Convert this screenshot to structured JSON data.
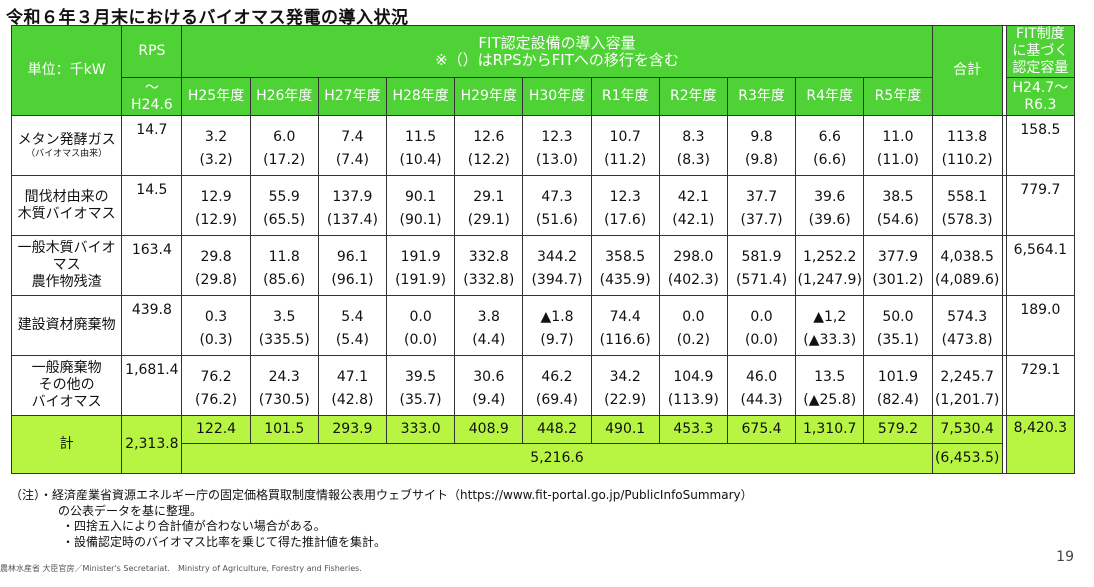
{
  "title": "令和６年３月末におけるバイオマス発電の導入状況",
  "header": {
    "unit": "単位：千kW",
    "rps": "RPS",
    "rps_period": "～\nH24.6",
    "fit_line1": "FIT認定設備の導入容量",
    "fit_line2": "※（）はRPSからFITへの移行を含む",
    "years": [
      "H25年度",
      "H26年度",
      "H27年度",
      "H28年度",
      "H29年度",
      "H30年度",
      "R1年度",
      "R2年度",
      "R3年度",
      "R4年度",
      "R5年度"
    ],
    "total": "合計",
    "fit_cert": "FIT制度\nに基づく\n認定容量",
    "fit_cert_period": "H24.7～\nR6.3"
  },
  "rows": [
    {
      "label": "メタン発酵ガス",
      "sublabel": "（バイオマス由来）",
      "rps": "14.7",
      "years": [
        "3.2",
        "6.0",
        "7.4",
        "11.5",
        "12.6",
        "12.3",
        "10.7",
        "8.3",
        "9.8",
        "6.6",
        "11.0"
      ],
      "years_incl": [
        "(3.2)",
        "(17.2)",
        "(7.4)",
        "(10.4)",
        "(12.2)",
        "(13.0)",
        "(11.2)",
        "(8.3)",
        "(9.8)",
        "(6.6)",
        "(11.0)"
      ],
      "total": "113.8",
      "total_incl": "(110.2)",
      "cert": "158.5"
    },
    {
      "label": "間伐材由来の\n木質バイオマス",
      "sublabel": "",
      "rps": "14.5",
      "years": [
        "12.9",
        "55.9",
        "137.9",
        "90.1",
        "29.1",
        "47.3",
        "12.3",
        "42.1",
        "37.7",
        "39.6",
        "38.5"
      ],
      "years_incl": [
        "(12.9)",
        "(65.5)",
        "(137.4)",
        "(90.1)",
        "(29.1)",
        "(51.6)",
        "(17.6)",
        "(42.1)",
        "(37.7)",
        "(39.6)",
        "(54.6)"
      ],
      "total": "558.1",
      "total_incl": "(578.3)",
      "cert": "779.7"
    },
    {
      "label": "一般木質バイオ\nマス\n農作物残渣",
      "sublabel": "",
      "rps": "163.4",
      "years": [
        "29.8",
        "11.8",
        "96.1",
        "191.9",
        "332.8",
        "344.2",
        "358.5",
        "298.0",
        "581.9",
        "1,252.2",
        "377.9"
      ],
      "years_incl": [
        "(29.8)",
        "(85.6)",
        "(96.1)",
        "(191.9)",
        "(332.8)",
        "(394.7)",
        "(435.9)",
        "(402.3)",
        "(571.4)",
        "(1,247.9)",
        "(301.2)"
      ],
      "total": "4,038.5",
      "total_incl": "(4,089.6)",
      "cert": "6,564.1"
    },
    {
      "label": "建設資材廃棄物",
      "sublabel": "",
      "rps": "439.8",
      "years": [
        "0.3",
        "3.5",
        "5.4",
        "0.0",
        "3.8",
        "▲1.8",
        "74.4",
        "0.0",
        "0.0",
        "▲1,2",
        "50.0"
      ],
      "years_incl": [
        "(0.3)",
        "(335.5)",
        "(5.4)",
        "(0.0)",
        "(4.4)",
        "(9.7)",
        "(116.6)",
        "(0.2)",
        "(0.0)",
        "(▲33.3)",
        "(35.1)"
      ],
      "total": "574.3",
      "total_incl": "(473.8)",
      "cert": "189.0"
    },
    {
      "label": "一般廃棄物\nその他の\nバイオマス",
      "sublabel": "",
      "rps": "1,681.4",
      "years": [
        "76.2",
        "24.3",
        "47.1",
        "39.5",
        "30.6",
        "46.2",
        "34.2",
        "104.9",
        "46.0",
        "13.5",
        "101.9"
      ],
      "years_incl": [
        "(76.2)",
        "(730.5)",
        "(42.8)",
        "(35.7)",
        "(9.4)",
        "(69.4)",
        "(22.9)",
        "(113.9)",
        "(44.3)",
        "(▲25.8)",
        "(82.4)"
      ],
      "total": "2,245.7",
      "total_incl": "(1,201.7)",
      "cert": "729.1"
    }
  ],
  "totals": {
    "label": "計",
    "rps": "2,313.8",
    "years": [
      "122.4",
      "101.5",
      "293.9",
      "333.0",
      "408.9",
      "448.2",
      "490.1",
      "453.3",
      "675.4",
      "1,310.7",
      "579.2"
    ],
    "fit_sum": "5,216.6",
    "total": "7,530.4",
    "total_incl": "(6,453.5)",
    "cert": "8,420.3"
  },
  "notes": [
    "（注）・経済産業省資源エネルギー庁の固定価格買取制度情報公表用ウェブサイト（https://www.fit-portal.go.jp/PublicInfoSummary）",
    "の公表データを基に整理。",
    "・四捨五入により合計値が合わない場合がある。",
    "・設備認定時のバイオマス比率を乗じて得た推計値を集計。"
  ],
  "footer": "農林水産省 大臣官房／Minister's Secretariat.　Ministry of Agriculture, Forestry and Fisheries.",
  "page_number": "19",
  "colors": {
    "header_green": "#4fd235",
    "total_lime": "#b8f542"
  }
}
